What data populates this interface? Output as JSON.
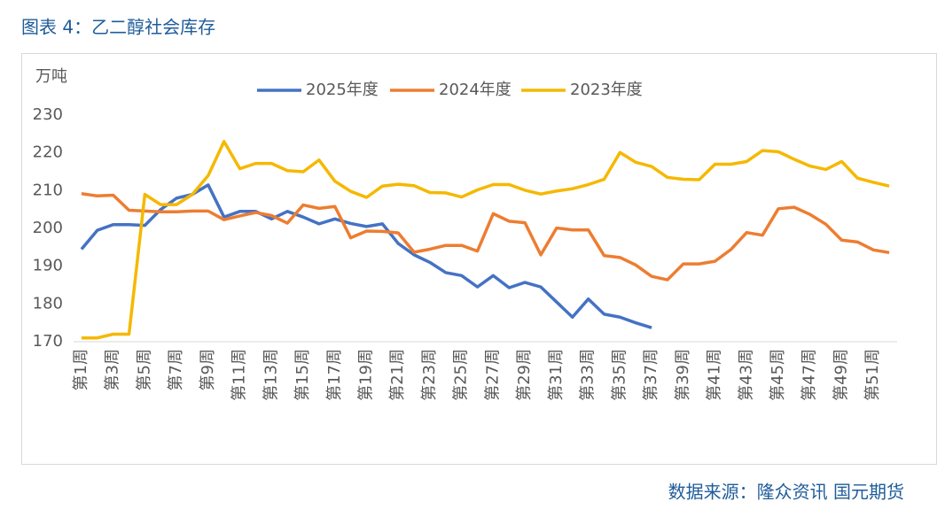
{
  "chart_data": {
    "type": "line",
    "title": "图表 4：乙二醇社会库存",
    "y_label": "万吨",
    "source": "数据来源：隆众资讯 国元期货",
    "categories": [
      "第1周",
      null,
      "第3周",
      null,
      "第5周",
      null,
      "第7周",
      null,
      "第9周",
      null,
      "第11周",
      null,
      "第13周",
      null,
      "第15周",
      null,
      "第17周",
      null,
      "第19周",
      null,
      "第21周",
      null,
      "第23周",
      null,
      "第25周",
      null,
      "第27周",
      null,
      "第29周",
      null,
      "第31周",
      null,
      "第33周",
      null,
      "第35周",
      null,
      "第37周",
      null,
      "第39周",
      null,
      "第41周",
      null,
      "第43周",
      null,
      "第45周",
      null,
      "第47周",
      null,
      "第49周",
      null,
      "第51周",
      null
    ],
    "ylim": [
      170,
      230
    ],
    "yticks": [
      170,
      180,
      190,
      200,
      210,
      220,
      230
    ],
    "grid": false,
    "series": [
      {
        "name": "2025年度",
        "color": "#4472c4",
        "values": [
          194.5,
          199.5,
          201,
          201,
          200.8,
          205,
          208,
          209,
          211.5,
          203,
          204.5,
          204.5,
          202.5,
          204.5,
          203,
          201.2,
          202.5,
          201.3,
          200.5,
          201.2,
          196,
          193,
          191,
          188.3,
          187.5,
          184.5,
          187.5,
          184.3,
          185.7,
          184.5,
          180.5,
          176.5,
          181.3,
          177.3,
          176.5,
          175,
          173.7,
          null,
          null,
          null,
          null,
          null,
          null,
          null,
          null,
          null,
          null,
          null,
          null,
          null,
          null,
          null
        ]
      },
      {
        "name": "2024年度",
        "color": "#ed7d31",
        "values": [
          209.2,
          208.6,
          208.8,
          204.8,
          204.6,
          204.4,
          204.4,
          204.6,
          204.6,
          202.3,
          203.3,
          204.2,
          203.4,
          201.4,
          206.2,
          205.3,
          205.8,
          197.5,
          199.3,
          199.2,
          198.8,
          193.7,
          194.5,
          195.5,
          195.5,
          194,
          203.9,
          201.9,
          201.5,
          193,
          200.1,
          199.6,
          199.6,
          192.8,
          192.3,
          190.3,
          187.3,
          186.4,
          190.6,
          190.6,
          191.3,
          194.4,
          198.9,
          198.2,
          205.2,
          205.6,
          203.7,
          201.1,
          196.9,
          196.4,
          194.3,
          193.6
        ]
      },
      {
        "name": "2023年度",
        "color": "#f5b800",
        "values": [
          171,
          171,
          172,
          172,
          209,
          206.3,
          206.3,
          209,
          214,
          223,
          215.8,
          217.2,
          217.2,
          215.3,
          215,
          218.1,
          212.5,
          209.8,
          208.2,
          211.2,
          211.7,
          211.3,
          209.5,
          209.4,
          208.3,
          210.2,
          211.6,
          211.6,
          210.1,
          209.1,
          209.9,
          210.5,
          211.6,
          213,
          220.1,
          217.5,
          216.4,
          213.5,
          213,
          212.9,
          217,
          217,
          217.7,
          220.6,
          220.3,
          218.3,
          216.5,
          215.6,
          217.7,
          213.3,
          212.2,
          211.2
        ]
      }
    ]
  }
}
